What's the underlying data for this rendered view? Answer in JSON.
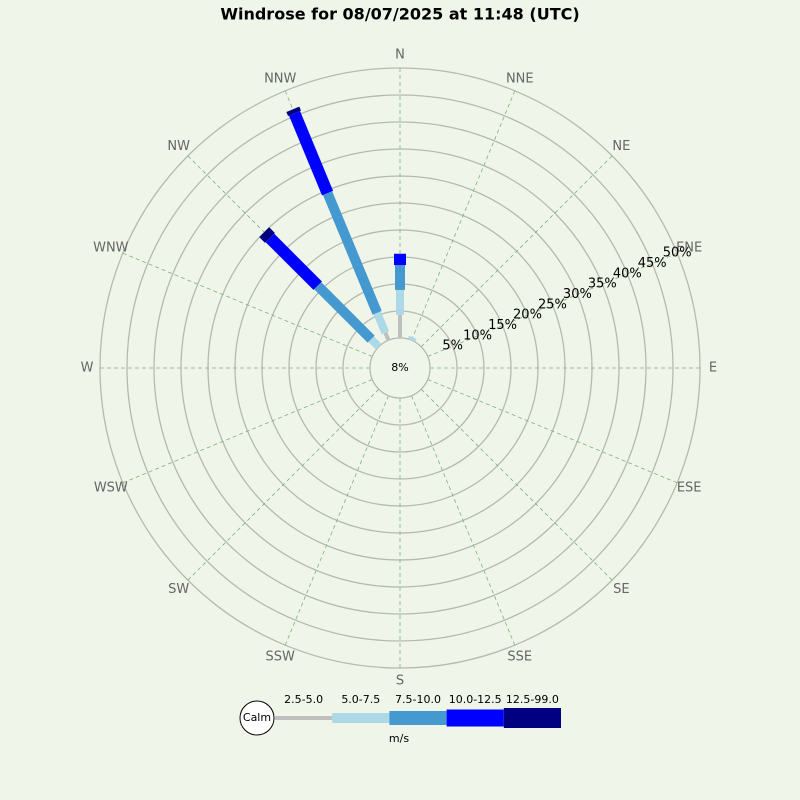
{
  "chart_data": {
    "type": "windrose",
    "title": "Windrose for 08/07/2025 at 11:48 (UTC)",
    "directions": [
      "N",
      "NNE",
      "NE",
      "ENE",
      "E",
      "ESE",
      "SE",
      "SSE",
      "S",
      "SSW",
      "SW",
      "WSW",
      "W",
      "WNW",
      "NW",
      "NNW"
    ],
    "series": [
      {
        "name": "2.5-5.0",
        "color": "#bfbfbf",
        "values": [
          4.3,
          0,
          0,
          0,
          0,
          0,
          0,
          0,
          0,
          0,
          0,
          0,
          0,
          0,
          0,
          1.5
        ]
      },
      {
        "name": "5.0-7.5",
        "color": "#add8e6",
        "values": [
          4.6,
          0.6,
          0,
          0,
          0,
          0,
          0,
          0,
          0,
          0,
          0,
          0,
          0,
          0,
          2,
          4
        ]
      },
      {
        "name": "7.5-10.0",
        "color": "#4499d0",
        "values": [
          4.6,
          0,
          0,
          0,
          0,
          0,
          0,
          0,
          0,
          0,
          0,
          0,
          0,
          0,
          14,
          24
        ]
      },
      {
        "name": "10.0-12.5",
        "color": "#0000ff",
        "values": [
          2.1,
          0,
          0,
          0,
          0,
          0,
          0,
          0,
          0,
          0,
          0,
          0,
          0,
          0,
          12.5,
          16
        ]
      },
      {
        "name": "12.5-99.0",
        "color": "#000080",
        "values": [
          0,
          0,
          0,
          0,
          0,
          0,
          0,
          0,
          0,
          0,
          0,
          0,
          0,
          0,
          1.5,
          0.8
        ]
      }
    ],
    "calm_label": "Calm",
    "calm": 8,
    "calm_value_label": "8%",
    "units": "m/s",
    "rlim": [
      0,
      50
    ],
    "rticks": [
      {
        "value": 5,
        "label": "5%"
      },
      {
        "value": 10,
        "label": "10%"
      },
      {
        "value": 15,
        "label": "15%"
      },
      {
        "value": 20,
        "label": "20%"
      },
      {
        "value": 25,
        "label": "25%"
      },
      {
        "value": 30,
        "label": "30%"
      },
      {
        "value": 35,
        "label": "35%"
      },
      {
        "value": 40,
        "label": "40%"
      },
      {
        "value": 45,
        "label": "45%"
      },
      {
        "value": 50,
        "label": "50%"
      }
    ]
  }
}
